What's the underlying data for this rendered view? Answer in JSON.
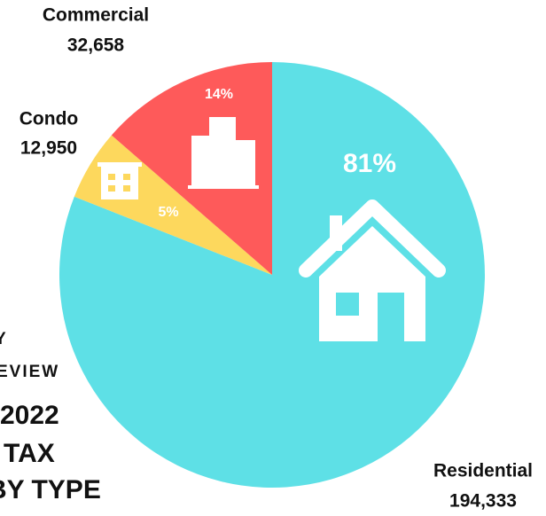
{
  "chart_data": {
    "type": "pie",
    "title_lines": [
      "Y",
      "EVIEW",
      "2022",
      "TAX",
      "BY TYPE"
    ],
    "categories": [
      "Residential",
      "Condo",
      "Commercial"
    ],
    "values": [
      194333,
      12950,
      32658
    ],
    "value_labels": [
      "194,333",
      "12,950",
      "32,658"
    ],
    "percents": [
      81,
      5,
      14
    ],
    "percent_labels": [
      "81%",
      "5%",
      "14%"
    ],
    "colors": [
      "#5ee0e6",
      "#fdd85d",
      "#fe5a5a"
    ]
  }
}
